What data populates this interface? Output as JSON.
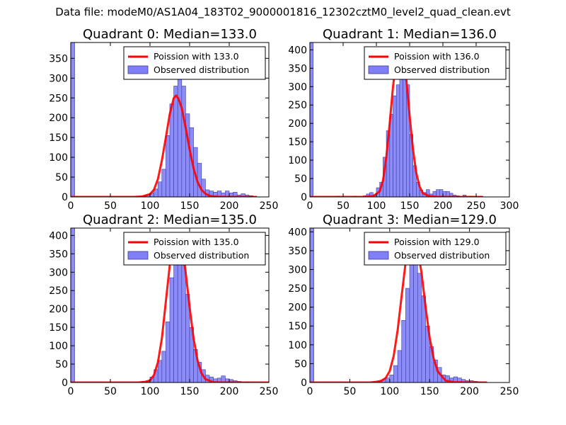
{
  "suptitle": "Data file: modeM0/AS1A04_183T02_9000001816_12302cztM0_level2_quad_clean.evt",
  "colors": {
    "bar_fill": "#7f7ff7",
    "bar_edge": "#3d3d9e",
    "curve": "#ff0000",
    "axes": "#000000",
    "legend_edge": "#000000"
  },
  "chart_data": [
    {
      "type": "bar+line",
      "title": "Quadrant 0: Median=133.0",
      "median": 133.0,
      "xlim": [
        0,
        250
      ],
      "ylim": [
        0,
        390
      ],
      "xticks": [
        0,
        50,
        100,
        150,
        200,
        250
      ],
      "yticks": [
        0,
        50,
        100,
        150,
        200,
        250,
        300,
        350
      ],
      "legend": {
        "line_label": "Poission with 133.0",
        "bar_label": "Observed distribution",
        "loc": "upper right"
      },
      "bin_width": 5,
      "bins": [
        [
          0,
          390
        ],
        [
          85,
          2
        ],
        [
          90,
          3
        ],
        [
          95,
          5
        ],
        [
          100,
          10
        ],
        [
          105,
          20
        ],
        [
          110,
          38
        ],
        [
          115,
          70
        ],
        [
          120,
          155
        ],
        [
          125,
          235
        ],
        [
          130,
          280
        ],
        [
          135,
          370
        ],
        [
          140,
          280
        ],
        [
          145,
          210
        ],
        [
          150,
          175
        ],
        [
          155,
          125
        ],
        [
          160,
          85
        ],
        [
          165,
          45
        ],
        [
          170,
          18
        ],
        [
          175,
          15
        ],
        [
          180,
          12
        ],
        [
          185,
          15
        ],
        [
          190,
          10
        ],
        [
          195,
          15
        ],
        [
          200,
          10
        ],
        [
          205,
          12
        ],
        [
          210,
          5
        ],
        [
          215,
          8
        ],
        [
          220,
          5
        ],
        [
          225,
          3
        ]
      ],
      "curve_x": [
        0,
        80,
        90,
        100,
        105,
        110,
        115,
        120,
        125,
        130,
        133,
        136,
        140,
        145,
        150,
        155,
        160,
        165,
        170,
        175,
        180,
        190,
        200,
        220,
        235
      ],
      "curve_y": [
        0,
        0,
        1,
        7,
        18,
        45,
        92,
        150,
        210,
        250,
        256,
        248,
        225,
        175,
        120,
        72,
        38,
        18,
        8,
        3,
        1,
        0,
        0,
        0,
        0
      ]
    },
    {
      "type": "bar+line",
      "title": "Quadrant 1: Median=136.0",
      "median": 136.0,
      "xlim": [
        0,
        300
      ],
      "ylim": [
        0,
        420
      ],
      "xticks": [
        0,
        50,
        100,
        150,
        200,
        250,
        300
      ],
      "yticks": [
        0,
        50,
        100,
        150,
        200,
        250,
        300,
        350,
        400
      ],
      "legend": {
        "line_label": "Poission with 136.0",
        "bar_label": "Observed distribution",
        "loc": "upper right"
      },
      "bin_width": 5,
      "bins": [
        [
          0,
          420
        ],
        [
          40,
          2
        ],
        [
          65,
          2
        ],
        [
          80,
          3
        ],
        [
          85,
          8
        ],
        [
          90,
          12
        ],
        [
          95,
          5
        ],
        [
          100,
          25
        ],
        [
          105,
          40
        ],
        [
          110,
          108
        ],
        [
          115,
          180
        ],
        [
          120,
          225
        ],
        [
          125,
          275
        ],
        [
          130,
          305
        ],
        [
          135,
          400
        ],
        [
          140,
          350
        ],
        [
          145,
          305
        ],
        [
          150,
          170
        ],
        [
          155,
          85
        ],
        [
          160,
          40
        ],
        [
          165,
          18
        ],
        [
          170,
          12
        ],
        [
          175,
          20
        ],
        [
          180,
          8
        ],
        [
          185,
          15
        ],
        [
          190,
          20
        ],
        [
          195,
          20
        ],
        [
          200,
          15
        ],
        [
          205,
          15
        ],
        [
          210,
          10
        ],
        [
          215,
          5
        ],
        [
          220,
          3
        ],
        [
          230,
          5
        ],
        [
          240,
          2
        ],
        [
          255,
          2
        ]
      ],
      "curve_x": [
        0,
        80,
        95,
        105,
        110,
        115,
        120,
        125,
        130,
        136,
        140,
        145,
        150,
        155,
        160,
        165,
        170,
        180,
        190,
        200,
        260
      ],
      "curve_y": [
        0,
        0,
        2,
        15,
        45,
        110,
        200,
        300,
        375,
        405,
        385,
        320,
        220,
        130,
        65,
        28,
        10,
        2,
        0,
        0,
        0
      ]
    },
    {
      "type": "bar+line",
      "title": "Quadrant 2: Median=135.0",
      "median": 135.0,
      "xlim": [
        0,
        250
      ],
      "ylim": [
        0,
        420
      ],
      "xticks": [
        0,
        50,
        100,
        150,
        200,
        250
      ],
      "yticks": [
        0,
        50,
        100,
        150,
        200,
        250,
        300,
        350,
        400
      ],
      "legend": {
        "line_label": "Poission with 135.0",
        "bar_label": "Observed distribution",
        "loc": "upper right"
      },
      "bin_width": 5,
      "bins": [
        [
          0,
          420
        ],
        [
          90,
          3
        ],
        [
          95,
          5
        ],
        [
          100,
          15
        ],
        [
          105,
          35
        ],
        [
          110,
          60
        ],
        [
          115,
          85
        ],
        [
          120,
          165
        ],
        [
          125,
          285
        ],
        [
          130,
          350
        ],
        [
          135,
          360
        ],
        [
          140,
          330
        ],
        [
          145,
          240
        ],
        [
          150,
          150
        ],
        [
          155,
          90
        ],
        [
          160,
          55
        ],
        [
          165,
          35
        ],
        [
          170,
          20
        ],
        [
          175,
          15
        ],
        [
          180,
          10
        ],
        [
          185,
          12
        ],
        [
          190,
          18
        ],
        [
          195,
          10
        ],
        [
          200,
          8
        ],
        [
          205,
          5
        ],
        [
          210,
          3
        ],
        [
          220,
          2
        ]
      ],
      "curve_x": [
        0,
        85,
        95,
        100,
        105,
        110,
        115,
        120,
        125,
        130,
        135,
        140,
        145,
        150,
        155,
        160,
        165,
        170,
        180,
        190,
        200,
        250
      ],
      "curve_y": [
        0,
        0,
        2,
        6,
        20,
        55,
        120,
        220,
        320,
        385,
        400,
        375,
        300,
        205,
        120,
        60,
        25,
        9,
        1,
        0,
        0,
        0
      ]
    },
    {
      "type": "bar+line",
      "title": "Quadrant 3: Median=129.0",
      "median": 129.0,
      "xlim": [
        0,
        250
      ],
      "ylim": [
        0,
        410
      ],
      "xticks": [
        0,
        50,
        100,
        150,
        200,
        250
      ],
      "yticks": [
        0,
        50,
        100,
        150,
        200,
        250,
        300,
        350,
        400
      ],
      "legend": {
        "line_label": "Poission with 129.0",
        "bar_label": "Observed distribution",
        "loc": "upper right"
      },
      "bin_width": 5,
      "bins": [
        [
          0,
          410
        ],
        [
          80,
          3
        ],
        [
          85,
          5
        ],
        [
          90,
          8
        ],
        [
          95,
          12
        ],
        [
          100,
          20
        ],
        [
          105,
          45
        ],
        [
          110,
          85
        ],
        [
          115,
          165
        ],
        [
          120,
          250
        ],
        [
          125,
          350
        ],
        [
          130,
          370
        ],
        [
          135,
          290
        ],
        [
          140,
          230
        ],
        [
          145,
          150
        ],
        [
          150,
          95
        ],
        [
          155,
          60
        ],
        [
          160,
          40
        ],
        [
          165,
          20
        ],
        [
          170,
          18
        ],
        [
          175,
          12
        ],
        [
          180,
          15
        ],
        [
          185,
          12
        ],
        [
          190,
          8
        ],
        [
          195,
          5
        ],
        [
          200,
          5
        ],
        [
          205,
          3
        ],
        [
          210,
          2
        ]
      ],
      "curve_x": [
        0,
        75,
        85,
        90,
        95,
        100,
        105,
        110,
        115,
        120,
        125,
        129,
        133,
        140,
        145,
        150,
        155,
        160,
        170,
        180,
        200,
        222
      ],
      "curve_y": [
        0,
        0,
        2,
        5,
        12,
        30,
        70,
        140,
        230,
        320,
        375,
        390,
        378,
        290,
        200,
        120,
        65,
        30,
        5,
        1,
        0,
        0
      ]
    }
  ]
}
